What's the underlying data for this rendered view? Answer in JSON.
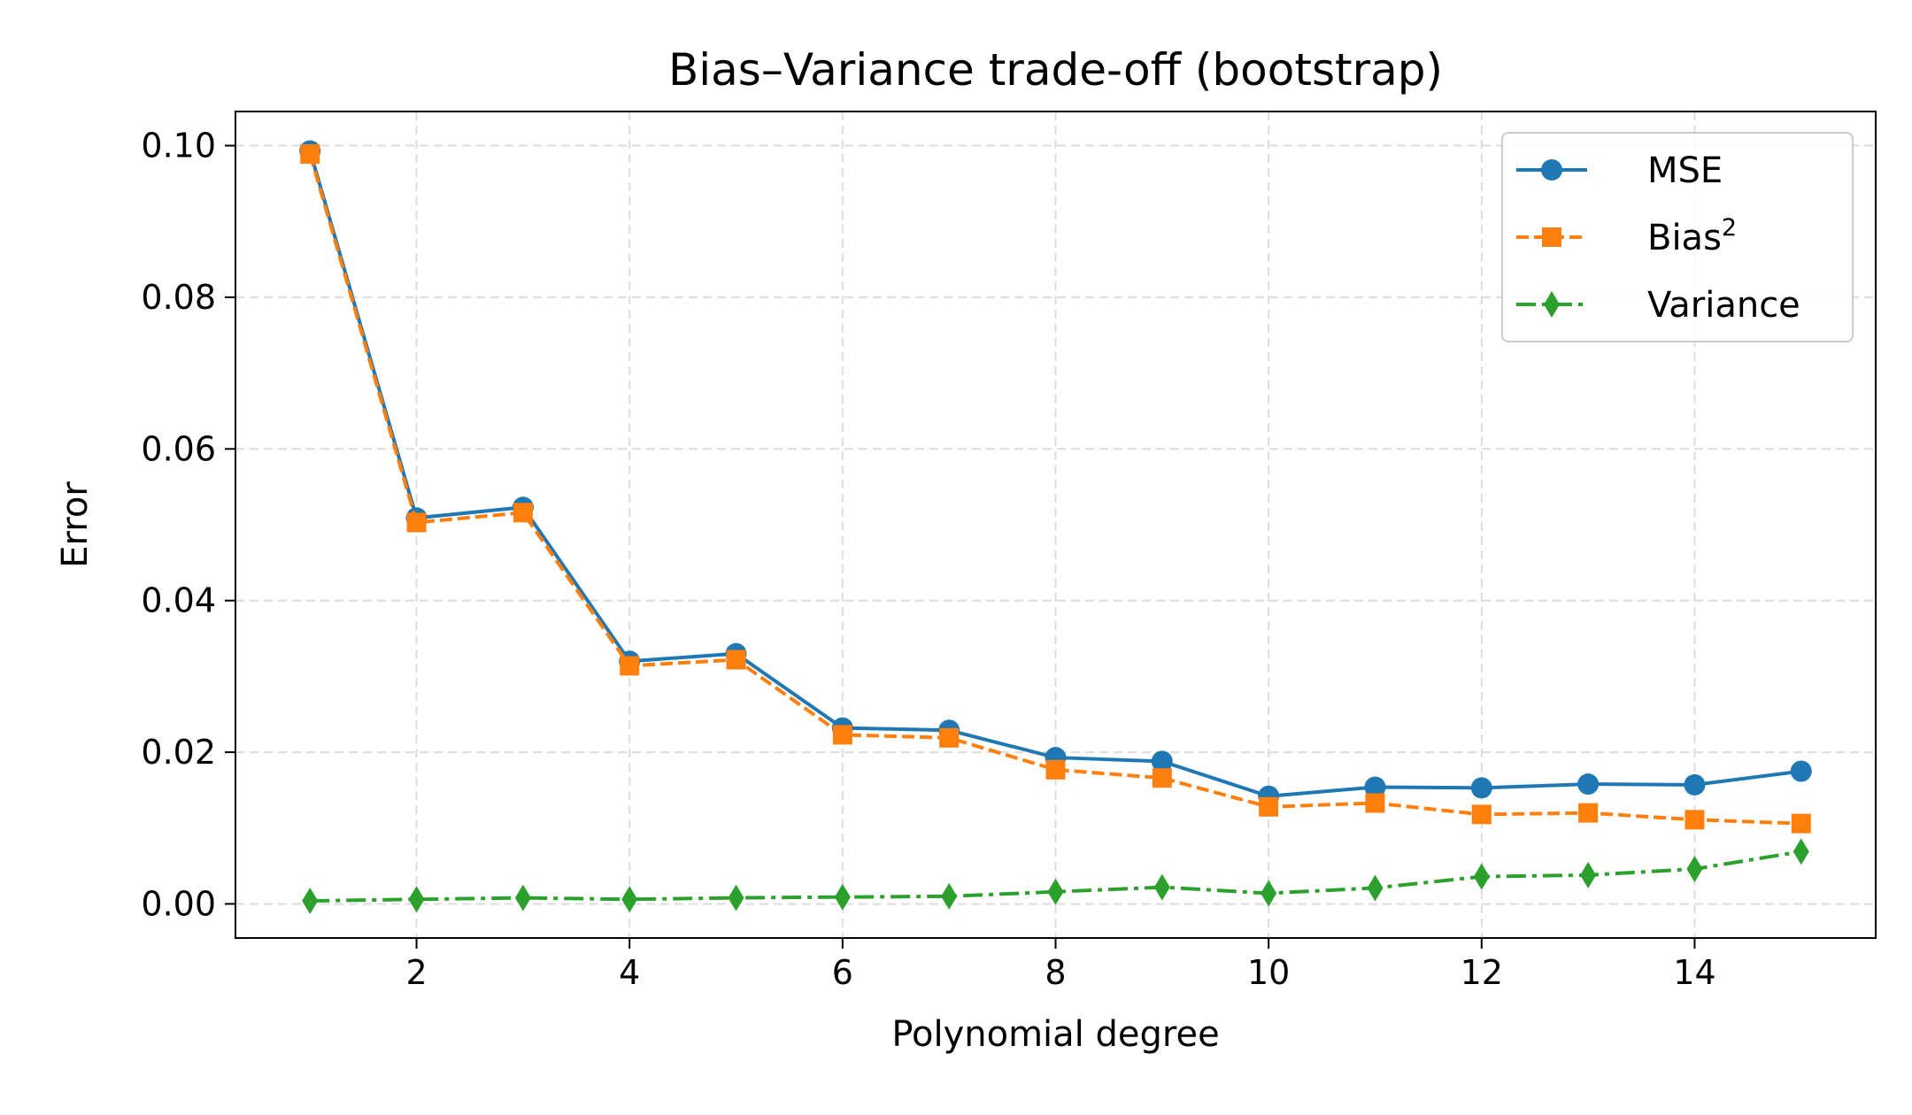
{
  "chart_data": {
    "type": "line",
    "title": "Bias–Variance trade-off (bootstrap)",
    "xlabel": "Polynomial degree",
    "ylabel": "Error",
    "xlim": [
      0.3,
      15.7
    ],
    "ylim": [
      -0.0045,
      0.1045
    ],
    "xticks": [
      2,
      4,
      6,
      8,
      10,
      12,
      14
    ],
    "xtick_labels": [
      "2",
      "4",
      "6",
      "8",
      "10",
      "12",
      "14"
    ],
    "yticks": [
      0.0,
      0.02,
      0.04,
      0.06,
      0.08,
      0.1
    ],
    "ytick_labels": [
      "0.00",
      "0.02",
      "0.04",
      "0.06",
      "0.08",
      "0.10"
    ],
    "grid": true,
    "legend_position": "top-right",
    "x": [
      1,
      2,
      3,
      4,
      5,
      6,
      7,
      8,
      9,
      10,
      11,
      12,
      13,
      14,
      15
    ],
    "series": [
      {
        "name": "MSE",
        "color": "#1f77b4",
        "marker": "circle",
        "linestyle": "solid",
        "values": [
          0.0993,
          0.0509,
          0.0523,
          0.032,
          0.033,
          0.0232,
          0.0229,
          0.0193,
          0.0188,
          0.0142,
          0.0154,
          0.0153,
          0.0158,
          0.0157,
          0.0175
        ]
      },
      {
        "name": "Bias",
        "name_superscript": "2",
        "color": "#ff7f0e",
        "marker": "square",
        "linestyle": "dashed",
        "values": [
          0.0989,
          0.0503,
          0.0516,
          0.0314,
          0.0322,
          0.0223,
          0.0219,
          0.0177,
          0.0166,
          0.0128,
          0.0133,
          0.0118,
          0.012,
          0.0111,
          0.0106
        ]
      },
      {
        "name": "Variance",
        "color": "#2ca02c",
        "marker": "diamond",
        "linestyle": "dashdot",
        "values": [
          0.0004,
          0.0006,
          0.0008,
          0.0006,
          0.0008,
          0.0009,
          0.001,
          0.0016,
          0.0022,
          0.0014,
          0.0021,
          0.0036,
          0.0038,
          0.0046,
          0.0069
        ]
      }
    ]
  }
}
